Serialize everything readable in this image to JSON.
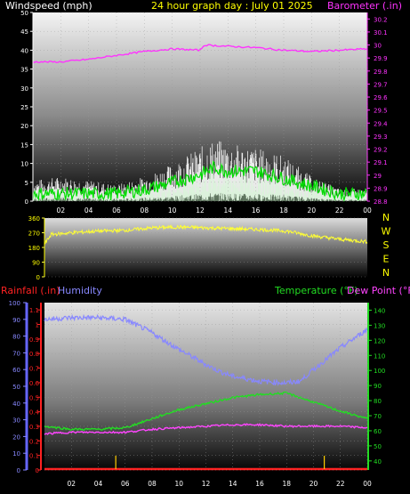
{
  "header": {
    "windspeed_title": "Windspeed (mph)",
    "graph_title": "24 hour graph day : July 01 2025",
    "barometer_title": "Barometer (.in)"
  },
  "direction_labels": [
    "N",
    "W",
    "S",
    "E",
    "N"
  ],
  "bottom_header": {
    "rainfall_title": "Rainfall (.in)",
    "humidity_title": "Humidity",
    "temperature_title": "Temperature (°F)",
    "dewpoint_title": "Dew Point (°F)"
  },
  "colors": {
    "windspeed_title": "#ffffff",
    "graph_title": "#ffff00",
    "barometer": "#ff33ff",
    "gust": "#ffffff",
    "wind": "#00dd00",
    "direction": "#ffff33",
    "direction_labels": "#ffff00",
    "rainfall": "#ff2222",
    "humidity": "#8888ff",
    "temperature": "#22dd22",
    "dewpoint": "#ff44ff"
  },
  "chart_data": [
    {
      "type": "line",
      "name": "wind-chart",
      "x_ticks": [
        "02",
        "04",
        "06",
        "08",
        "10",
        "12",
        "14",
        "16",
        "18",
        "20",
        "22",
        "00"
      ],
      "left_axis": {
        "label": "Windspeed (mph)",
        "ticks": [
          0,
          5,
          10,
          15,
          20,
          25,
          30,
          35,
          40,
          45,
          50
        ],
        "range": [
          0,
          50
        ]
      },
      "right_axis": {
        "label": "Barometer (.in)",
        "ticks": [
          "28.8",
          "28.9",
          "29",
          "29.1",
          "29.2",
          "29.3",
          "29.4",
          "29.5",
          "29.6",
          "29.7",
          "29.8",
          "29.9",
          "30",
          "30.1",
          "30.2"
        ],
        "range": [
          28.8,
          30.25
        ]
      },
      "series": [
        {
          "name": "Barometer",
          "axis": "right",
          "x": [
            0,
            2,
            4,
            6,
            8,
            10,
            12,
            12.3,
            14,
            16,
            18,
            20,
            22,
            24
          ],
          "y": [
            29.87,
            29.87,
            29.89,
            29.92,
            29.95,
            29.97,
            29.96,
            30.0,
            29.99,
            29.98,
            29.96,
            29.95,
            29.96,
            29.97
          ]
        },
        {
          "name": "Gust",
          "axis": "left",
          "x": [
            0,
            2,
            4,
            6,
            8,
            10,
            12,
            13,
            14,
            16,
            18,
            20,
            22,
            24
          ],
          "y": [
            5,
            6,
            5,
            4,
            6,
            9,
            13,
            15,
            14,
            13,
            11,
            6,
            3,
            3
          ]
        },
        {
          "name": "Wind",
          "axis": "left",
          "x": [
            0,
            2,
            4,
            6,
            8,
            10,
            12,
            13,
            14,
            16,
            18,
            20,
            22,
            24
          ],
          "y": [
            2,
            2,
            2,
            2,
            3,
            5,
            7,
            9,
            8,
            8,
            6,
            4,
            2,
            2
          ]
        }
      ]
    },
    {
      "type": "line",
      "name": "direction-chart",
      "left_axis": {
        "ticks": [
          0,
          90,
          180,
          270,
          360
        ],
        "range": [
          0,
          360
        ]
      },
      "right_axis": {
        "ticks": [
          "N",
          "W",
          "S",
          "E",
          "N"
        ]
      },
      "series": [
        {
          "name": "Wind Direction",
          "x": [
            0,
            0.5,
            2,
            4,
            6,
            8,
            10,
            12,
            14,
            16,
            18,
            20,
            22,
            24
          ],
          "y": [
            200,
            260,
            270,
            280,
            285,
            300,
            305,
            300,
            295,
            290,
            280,
            250,
            230,
            215
          ]
        }
      ]
    },
    {
      "type": "line",
      "name": "weather-chart",
      "x_ticks": [
        "02",
        "04",
        "06",
        "08",
        "10",
        "12",
        "14",
        "16",
        "18",
        "20",
        "22",
        "00"
      ],
      "humidity_axis": {
        "label": "Humidity",
        "ticks": [
          0,
          10,
          20,
          30,
          40,
          50,
          60,
          70,
          80,
          90,
          100
        ],
        "range": [
          0,
          100
        ]
      },
      "rain_axis": {
        "label": "Rainfall (.in)",
        "ticks": [
          "0",
          "0.1",
          "0.2",
          "0.3",
          "0.4",
          "0.5",
          "0.6",
          "0.7",
          "0.8",
          "0.9",
          "1",
          "1.1"
        ],
        "range": [
          0,
          1.15
        ]
      },
      "temp_axis": {
        "label": "Temperature (°F)",
        "ticks": [
          40,
          50,
          60,
          70,
          80,
          90,
          100,
          110,
          120,
          130,
          140
        ],
        "range": [
          34,
          145
        ]
      },
      "series": [
        {
          "name": "Humidity",
          "axis": "humidity",
          "x": [
            0,
            2,
            4,
            6,
            8,
            10,
            12,
            13,
            14,
            16,
            18,
            19,
            20,
            22,
            24
          ],
          "y": [
            90,
            91,
            91,
            90,
            82,
            72,
            63,
            59,
            56,
            53,
            52,
            53,
            60,
            73,
            84
          ]
        },
        {
          "name": "Temperature",
          "axis": "temp",
          "x": [
            0,
            2,
            4,
            6,
            8,
            10,
            12,
            14,
            16,
            18,
            20,
            22,
            24
          ],
          "y": [
            63,
            61,
            61,
            62,
            68,
            74,
            78,
            82,
            84,
            85,
            79,
            73,
            68
          ]
        },
        {
          "name": "Dew Point",
          "axis": "temp",
          "x": [
            0,
            2,
            4,
            6,
            8,
            10,
            12,
            14,
            16,
            18,
            20,
            22,
            24
          ],
          "y": [
            58,
            59,
            59,
            59,
            61,
            62,
            63,
            64,
            64,
            63,
            63,
            63,
            62
          ]
        },
        {
          "name": "Rainfall",
          "axis": "rain",
          "x": [
            0,
            24
          ],
          "y": [
            0,
            0
          ]
        }
      ],
      "markers_x": [
        5.3,
        20.8
      ]
    }
  ]
}
